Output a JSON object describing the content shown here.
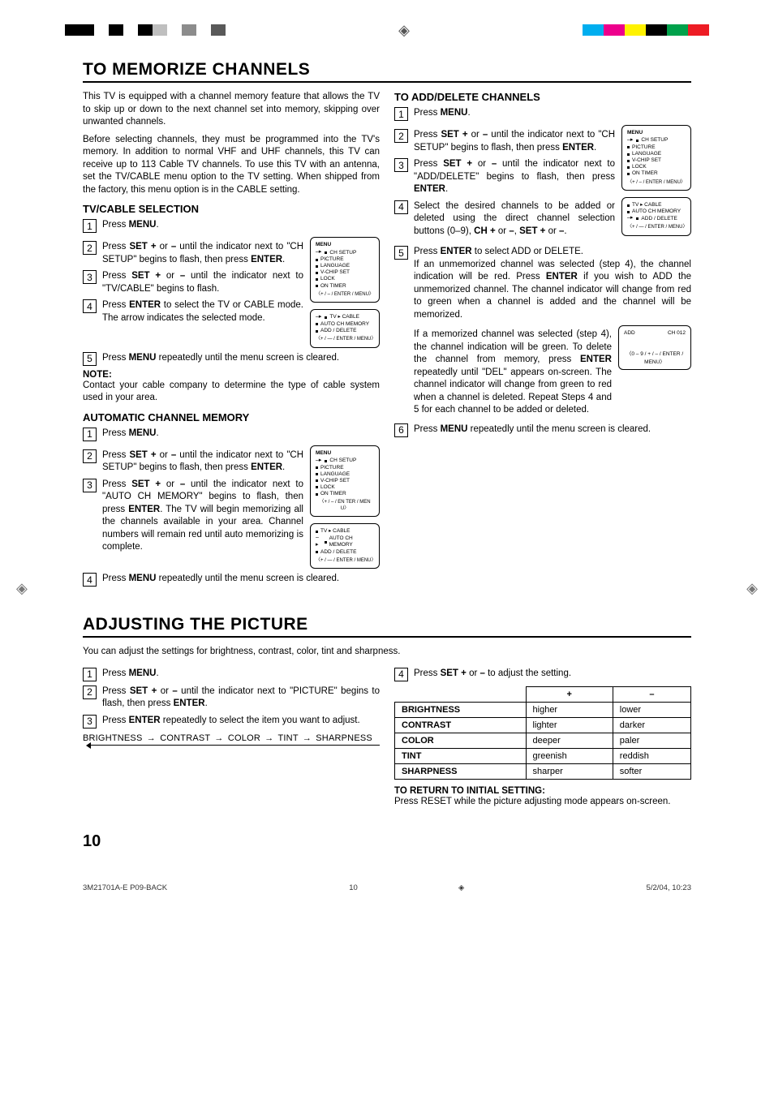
{
  "colorbar": {
    "left": [
      "#000",
      "#000",
      "#fff",
      "#000",
      "#fff",
      "#000",
      "#bfbfbf",
      "#fff",
      "#8c8c8c",
      "#fff",
      "#595959"
    ],
    "right": [
      "#00aeef",
      "#ed008c",
      "#fff200",
      "#000000",
      "#00a14b",
      "#ed1c24"
    ]
  },
  "title1": "TO MEMORIZE CHANNELS",
  "intro1": "This TV is equipped with a channel memory feature that allows the TV to skip up or down to the next channel set into memory, skipping over unwanted channels.",
  "intro2": "Before selecting channels, they must be programmed into the TV's memory. In addition to normal VHF and UHF channels, this TV can receive up to 113 Cable TV channels. To use this TV with an antenna, set the TV/CABLE menu option to the TV setting. When shipped from the factory, this menu option is in the CABLE setting.",
  "sec_tvcable": "TV/CABLE SELECTION",
  "tc1": "Press MENU.",
  "tc2": "Press SET + or – until the indicator next to \"CH SETUP\" begins to flash, then press ENTER.",
  "tc3": "Press SET + or – until the indicator next to \"TV/CABLE\" begins to flash.",
  "tc4": "Press ENTER to select the TV or CABLE mode. The arrow indicates the selected mode.",
  "tc5": "Press MENU repeatedly until the menu screen is cleared.",
  "note_label": "NOTE:",
  "note_text": "Contact your cable company to determine the type of cable system used in your area.",
  "sec_auto": "AUTOMATIC CHANNEL MEMORY",
  "au1": "Press MENU.",
  "au2": "Press SET + or – until the indicator next to \"CH SETUP\" begins to flash, then press ENTER.",
  "au3": "Press SET + or – until the indicator next to \"AUTO CH MEMORY\" begins to flash, then press ENTER. The TV will begin memorizing all the channels available in your area. Channel numbers will remain red until auto memorizing is complete.",
  "au4": "Press MENU repeatedly until the menu screen is cleared.",
  "sec_add": "TO ADD/DELETE CHANNELS",
  "ad1": "Press MENU.",
  "ad2": "Press SET + or – until the indicator next to \"CH SETUP\" begins to flash, then press ENTER.",
  "ad3": "Press SET + or – until the indicator next to \"ADD/DELETE\" begins to flash, then press ENTER.",
  "ad4": "Select the desired channels to be added or deleted using the direct channel selection buttons (0–9), CH + or –, SET + or –.",
  "ad5a": "Press ENTER to select ADD or DELETE.",
  "ad5b": "If an unmemorized channel was selected (step 4), the channel indication will be red. Press ENTER if you wish to ADD the unmemorized channel. The channel indicator will change from red to green when a channel is added and the channel will be memorized.",
  "ad5c": "If a memorized channel was selected (step 4), the channel indication will be green. To delete the channel from memory, press ENTER repeatedly until \"DEL\" appears on-screen. The channel indicator will change from green to red when a channel is deleted. Repeat Steps 4 and 5 for each channel to be added or deleted.",
  "ad6": "Press MENU repeatedly until the menu screen is cleared.",
  "menu_items": [
    "CH SETUP",
    "PICTURE",
    "LANGUAGE",
    "V-CHIP SET",
    "LOCK",
    "ON TIMER"
  ],
  "menu_footer": "〈+ / – / ENTER / MENU〉",
  "sub_items": [
    "TV ▸ CABLE",
    "AUTO CH MEMORY",
    "ADD / DELETE"
  ],
  "sub_footer": "〈+ / — / ENTER / MENU〉",
  "sub2_footer": "〈+ / – / EN TER / MEN U〉",
  "addbox": {
    "l": "ADD",
    "r": "CH 012",
    "ft": "〈0 – 9 / + / – / ENTER / MENU〉"
  },
  "title2": "ADJUSTING THE PICTURE",
  "pic_intro": "You can adjust the settings for brightness, contrast, color, tint and sharpness.",
  "p1": "Press MENU.",
  "p2": "Press SET + or – until the indicator next to \"PICTURE\" begins to flash, then press ENTER.",
  "p3": "Press ENTER repeatedly to select the item you want to adjust.",
  "p4": "Press SET + or – to adjust the setting.",
  "seq": [
    "BRIGHTNESS",
    "CONTRAST",
    "COLOR",
    "TINT",
    "SHARPNESS"
  ],
  "table": {
    "head": [
      "",
      "+",
      "–"
    ],
    "rows": [
      [
        "BRIGHTNESS",
        "higher",
        "lower"
      ],
      [
        "CONTRAST",
        "lighter",
        "darker"
      ],
      [
        "COLOR",
        "deeper",
        "paler"
      ],
      [
        "TINT",
        "greenish",
        "reddish"
      ],
      [
        "SHARPNESS",
        "sharper",
        "softer"
      ]
    ]
  },
  "return_h": "TO RETURN TO INITIAL SETTING:",
  "return_t": "Press RESET while the picture adjusting mode appears on-screen.",
  "pagenum": "10",
  "footer": {
    "l": "3M21701A-E P09-BACK",
    "c": "10",
    "r": "5/2/04, 10:23"
  }
}
